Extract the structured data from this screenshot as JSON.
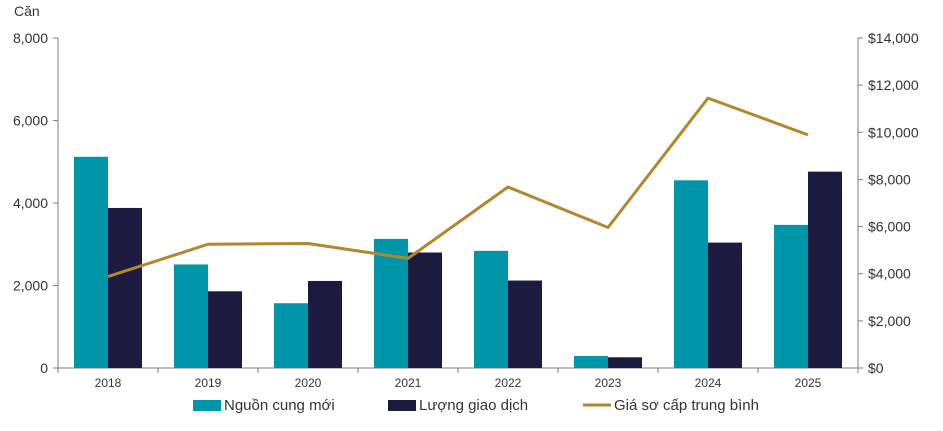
{
  "chart_data": {
    "type": "bar",
    "y_unit_label": "Căn",
    "categories": [
      "2018",
      "2019",
      "2020",
      "2021",
      "2022",
      "2023",
      "2024",
      "2025"
    ],
    "series": [
      {
        "name": "Nguồn cung mới",
        "type": "bar",
        "axis": "left",
        "color": "#0095a8",
        "values": [
          5120,
          2510,
          1570,
          3130,
          2840,
          290,
          4550,
          3470
        ]
      },
      {
        "name": "Lượng giao dịch",
        "type": "bar",
        "axis": "left",
        "color": "#1c1a3f",
        "values": [
          3880,
          1860,
          2110,
          2800,
          2120,
          260,
          3040,
          4760
        ]
      },
      {
        "name": "Giá sơ cấp trung bình",
        "type": "line",
        "axis": "right",
        "color": "#b3882c",
        "values": [
          3880,
          5250,
          5280,
          4650,
          7680,
          5960,
          11450,
          9890
        ]
      }
    ],
    "y_left": {
      "min": 0,
      "max": 8000,
      "ticks": [
        0,
        2000,
        4000,
        6000,
        8000
      ],
      "tick_labels": [
        "0",
        "2,000",
        "4,000",
        "6,000",
        "8,000"
      ]
    },
    "y_right": {
      "min": 0,
      "max": 14000,
      "ticks": [
        0,
        2000,
        4000,
        6000,
        8000,
        10000,
        12000,
        14000
      ],
      "tick_labels": [
        "$0",
        "$2,000",
        "$4,000",
        "$6,000",
        "$8,000",
        "$10,000",
        "$12,000",
        "$14,000"
      ]
    },
    "grid": false,
    "legend_position": "bottom"
  }
}
